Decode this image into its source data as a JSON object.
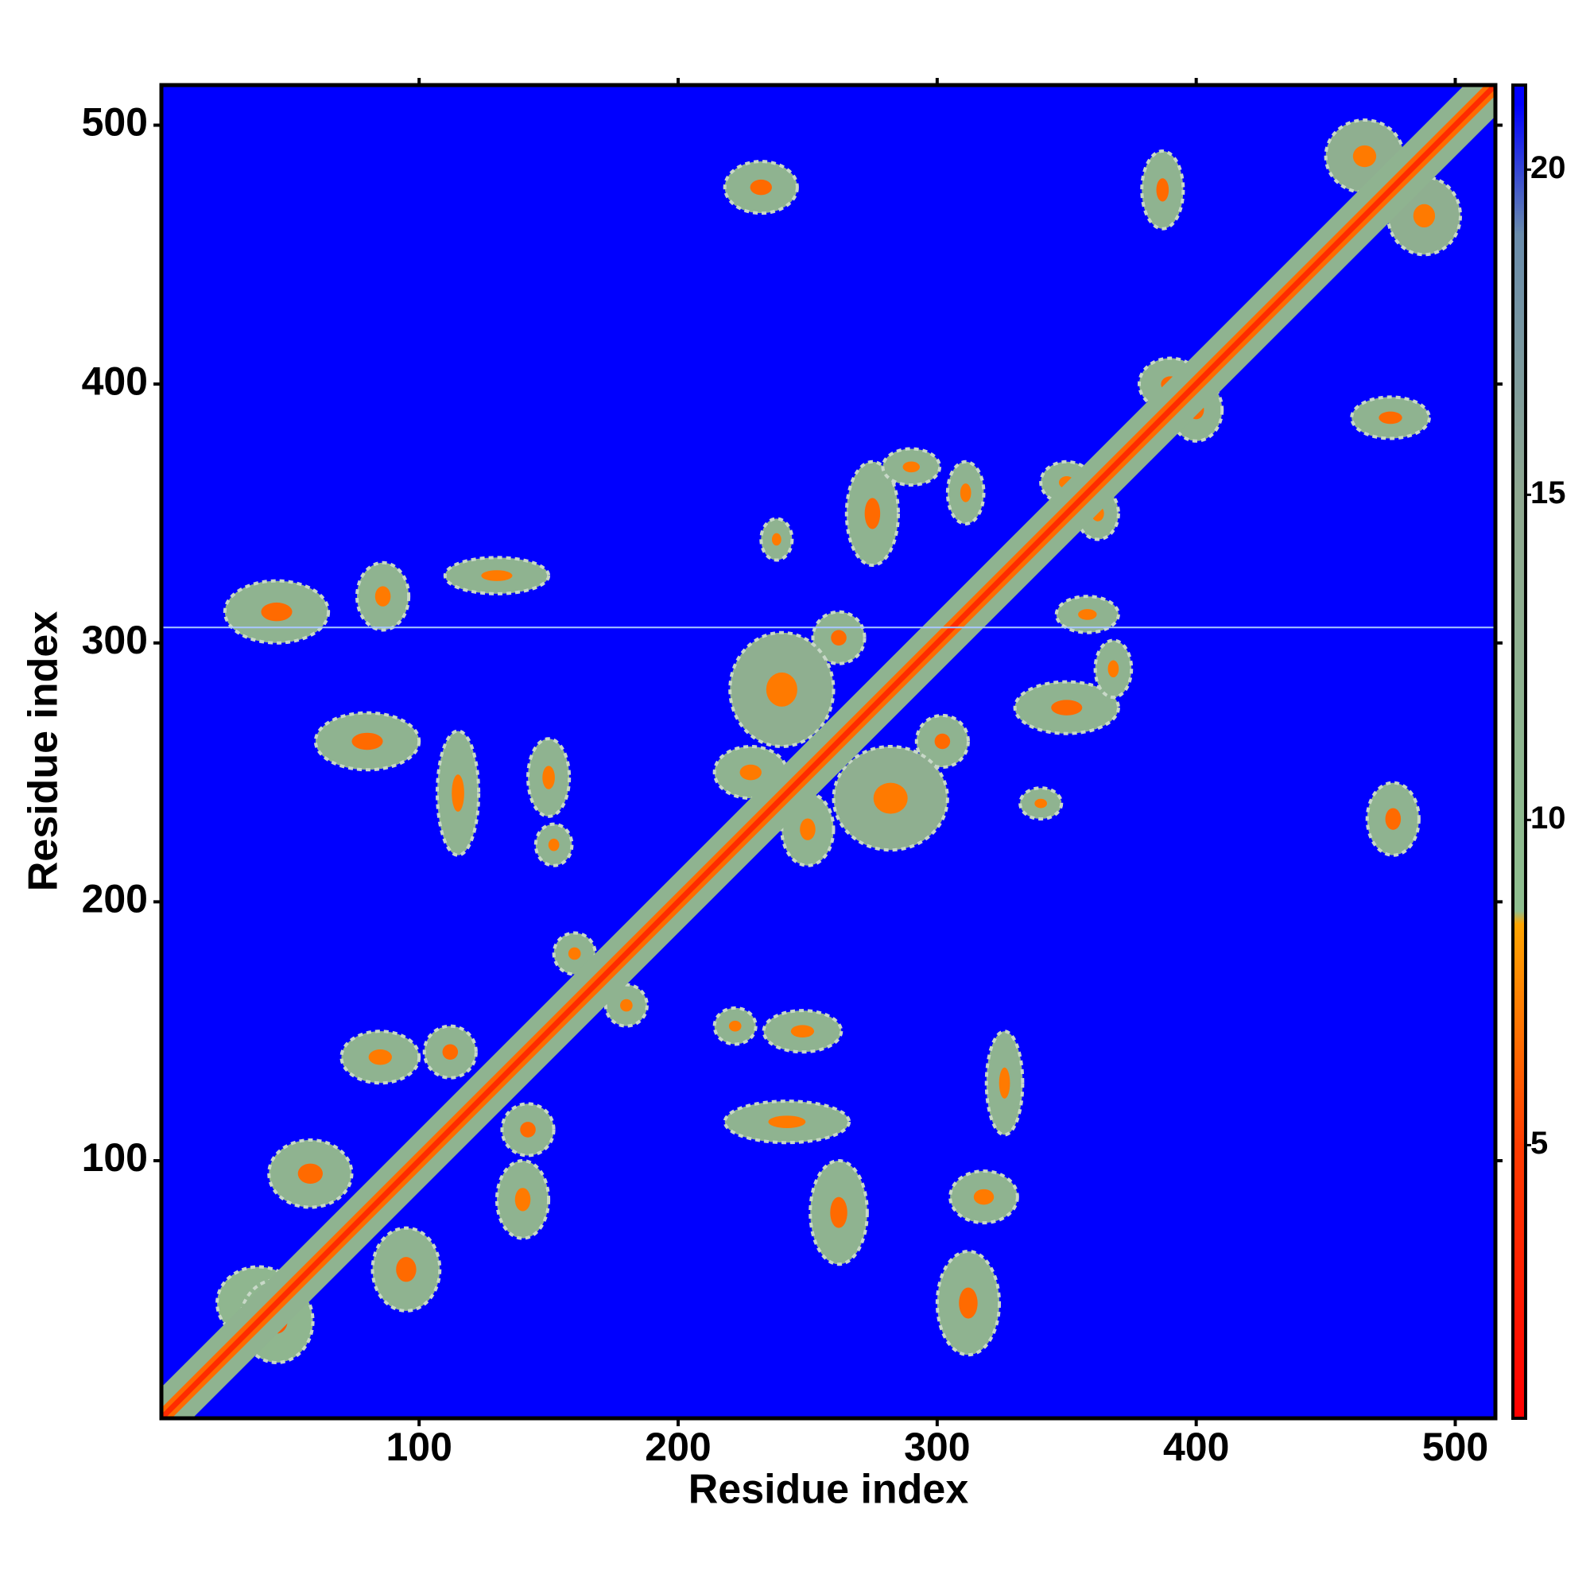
{
  "chart_data": {
    "type": "heatmap",
    "x_label": "Residue index",
    "y_label": "Residue index",
    "xlim": [
      0.5,
      515.5
    ],
    "ylim": [
      0.5,
      515.5
    ],
    "xticks": [
      100,
      200,
      300,
      400,
      500
    ],
    "yticks": [
      100,
      200,
      300,
      400,
      500
    ],
    "background_value": 21.3,
    "colorbar": {
      "lim": [
        0.8,
        21.3
      ],
      "ticks": [
        5,
        10,
        15,
        20
      ],
      "colorscale": [
        [
          0.8,
          "#ff0000"
        ],
        [
          5,
          "#ff3c00"
        ],
        [
          8.4,
          "#ffa500"
        ],
        [
          8.6,
          "#8fbf8f"
        ],
        [
          15,
          "#8fa890"
        ],
        [
          19,
          "#6a8cab"
        ],
        [
          21,
          "#0000ff"
        ]
      ]
    },
    "diagonal": [
      {
        "width": 12,
        "value": 12
      },
      {
        "width": 4,
        "value": 6.5
      },
      {
        "width": 1.5,
        "value": 3.8
      }
    ],
    "gap_row": 306,
    "clusters": [
      {
        "x": 232,
        "y": 476,
        "rx": 14,
        "ry": 10,
        "value": 12,
        "min": 6.5
      },
      {
        "x": 45,
        "y": 312,
        "rx": 20,
        "ry": 12,
        "value": 12,
        "min": 6.5
      },
      {
        "x": 86,
        "y": 318,
        "rx": 10,
        "ry": 13,
        "value": 12,
        "min": 7
      },
      {
        "x": 130,
        "y": 326,
        "rx": 20,
        "ry": 7,
        "value": 12,
        "min": 7
      },
      {
        "x": 80,
        "y": 262,
        "rx": 20,
        "ry": 11,
        "value": 12,
        "min": 6.5
      },
      {
        "x": 115,
        "y": 242,
        "rx": 8,
        "ry": 24,
        "value": 12,
        "min": 7
      },
      {
        "x": 150,
        "y": 248,
        "rx": 8,
        "ry": 15,
        "value": 12,
        "min": 7
      },
      {
        "x": 152,
        "y": 222,
        "rx": 7,
        "ry": 8,
        "value": 12,
        "min": 7
      },
      {
        "x": 238,
        "y": 340,
        "rx": 6,
        "ry": 8,
        "value": 12,
        "min": 7
      },
      {
        "x": 275,
        "y": 350,
        "rx": 10,
        "ry": 20,
        "value": 12,
        "min": 6.5
      },
      {
        "x": 290,
        "y": 368,
        "rx": 11,
        "ry": 7,
        "value": 12,
        "min": 7
      },
      {
        "x": 311,
        "y": 358,
        "rx": 7,
        "ry": 12,
        "value": 12,
        "min": 7
      },
      {
        "x": 262,
        "y": 302,
        "rx": 10,
        "ry": 10,
        "value": 12,
        "min": 6.5
      },
      {
        "x": 240,
        "y": 282,
        "rx": 20,
        "ry": 22,
        "value": 13,
        "min": 7
      },
      {
        "x": 58,
        "y": 95,
        "rx": 16,
        "ry": 13,
        "value": 12,
        "min": 6.5
      },
      {
        "x": 85,
        "y": 140,
        "rx": 15,
        "ry": 10,
        "value": 12,
        "min": 7
      },
      {
        "x": 112,
        "y": 142,
        "rx": 10,
        "ry": 10,
        "value": 12,
        "min": 6.5
      },
      {
        "x": 38,
        "y": 45,
        "rx": 16,
        "ry": 14,
        "value": 11,
        "min": 6
      },
      {
        "x": 160,
        "y": 180,
        "rx": 8,
        "ry": 8,
        "value": 12,
        "min": 7
      },
      {
        "x": 387,
        "y": 475,
        "rx": 8,
        "ry": 15,
        "value": 12,
        "min": 6.5
      },
      {
        "x": 390,
        "y": 400,
        "rx": 12,
        "ry": 10,
        "value": 12,
        "min": 6.5
      },
      {
        "x": 350,
        "y": 362,
        "rx": 10,
        "ry": 8,
        "value": 12,
        "min": 7
      },
      {
        "x": 465,
        "y": 488,
        "rx": 15,
        "ry": 14,
        "value": 13,
        "min": 7
      },
      {
        "x": 228,
        "y": 250,
        "rx": 14,
        "ry": 10,
        "value": 12,
        "min": 7
      }
    ]
  }
}
